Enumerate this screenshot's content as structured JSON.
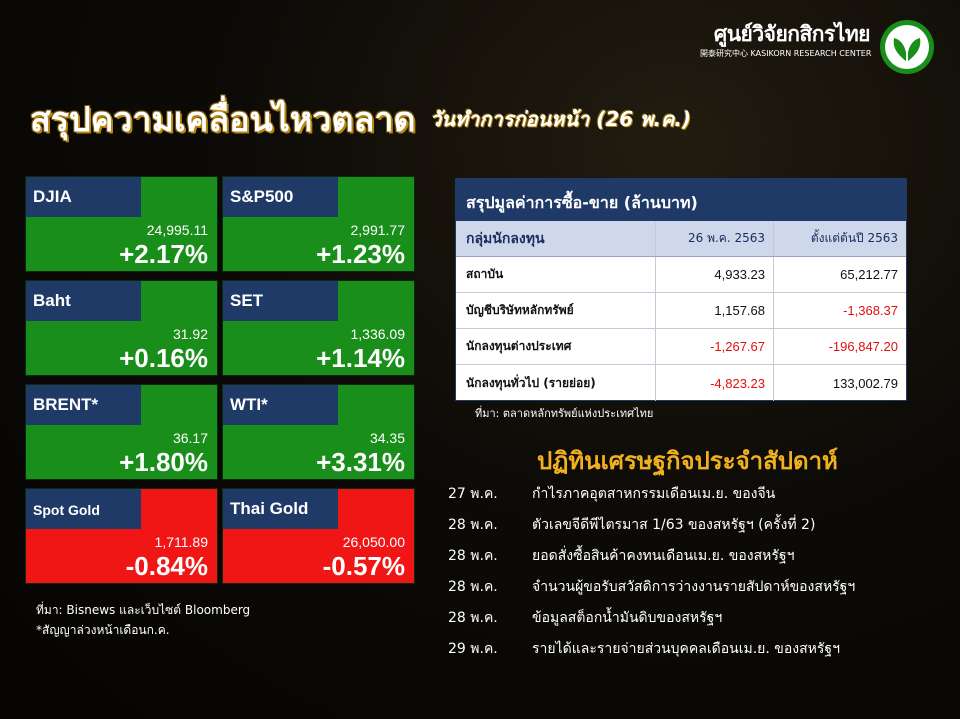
{
  "brand": {
    "name_th": "ศูนย์วิจัยกสิกรไทย",
    "name_en": "開泰研究中心 KASIKORN RESEARCH CENTER",
    "color_green": "#1a8e1a"
  },
  "header": {
    "title": "สรุปความเคลื่อนไหวตลาด",
    "subtitle": "วันทำการก่อนหน้า (26 พ.ค.)"
  },
  "markets": [
    {
      "name": "DJIA",
      "value": "24,995.11",
      "change": "+2.17%",
      "direction": "up"
    },
    {
      "name": "S&P500",
      "value": "2,991.77",
      "change": "+1.23%",
      "direction": "up"
    },
    {
      "name": "Baht",
      "value": "31.92",
      "change": "+0.16%",
      "direction": "up"
    },
    {
      "name": "SET",
      "value": "1,336.09",
      "change": "+1.14%",
      "direction": "up"
    },
    {
      "name": "BRENT*",
      "value": "36.17",
      "change": "+1.80%",
      "direction": "up"
    },
    {
      "name": "WTI*",
      "value": "34.35",
      "change": "+3.31%",
      "direction": "up"
    },
    {
      "name": "Spot Gold",
      "value": "1,711.89",
      "change": "-0.84%",
      "direction": "down"
    },
    {
      "name": "Thai Gold",
      "value": "26,050.00",
      "change": "-0.57%",
      "direction": "down"
    }
  ],
  "colors": {
    "up": "#1a8e1a",
    "down": "#f01616",
    "tag": "#203a68",
    "negative_text": "#e01010",
    "calendar_title": "#f0b020"
  },
  "notes_left": {
    "source": "ที่มา: Bisnews และเว็บไซต์ Bloomberg",
    "footnote": "*สัญญาล่วงหน้าเดือนก.ค."
  },
  "trading_table": {
    "title": "สรุปมูลค่าการซื้อ-ขาย (ล้านบาท)",
    "columns": [
      "กลุ่มนักลงทุน",
      "26 พ.ค. 2563",
      "ตั้งแต่ต้นปี 2563"
    ],
    "rows": [
      {
        "group": "สถาบัน",
        "day": "4,933.23",
        "ytd": "65,212.77",
        "day_neg": false,
        "ytd_neg": false
      },
      {
        "group": "บัญชีบริษัทหลักทรัพย์",
        "day": "1,157.68",
        "ytd": "-1,368.37",
        "day_neg": false,
        "ytd_neg": true
      },
      {
        "group": "นักลงทุนต่างประเทศ",
        "day": "-1,267.67",
        "ytd": "-196,847.20",
        "day_neg": true,
        "ytd_neg": true
      },
      {
        "group": "นักลงทุนทั่วไป (รายย่อย)",
        "day": "-4,823.23",
        "ytd": "133,002.79",
        "day_neg": true,
        "ytd_neg": false
      }
    ],
    "source": "ที่มา: ตลาดหลักทรัพย์แห่งประเทศไทย"
  },
  "calendar": {
    "title": "ปฏิทินเศรษฐกิจประจำสัปดาห์",
    "events": [
      {
        "date": "27 พ.ค.",
        "event": "กำไรภาคอุตสาหกรรมเดือนเม.ย. ของจีน"
      },
      {
        "date": "28 พ.ค.",
        "event": "ตัวเลขจีดีพีไตรมาส 1/63 ของสหรัฐฯ (ครั้งที่ 2)"
      },
      {
        "date": "28 พ.ค.",
        "event": "ยอดสั่งซื้อสินค้าคงทนเดือนเม.ย. ของสหรัฐฯ"
      },
      {
        "date": "28 พ.ค.",
        "event": "จำนวนผู้ขอรับสวัสดิการว่างงานรายสัปดาห์ของสหรัฐฯ"
      },
      {
        "date": "28 พ.ค.",
        "event": "ข้อมูลสต็อกน้ำมันดิบของสหรัฐฯ"
      },
      {
        "date": "29 พ.ค.",
        "event": "รายได้และรายจ่ายส่วนบุคคลเดือนเม.ย. ของสหรัฐฯ"
      }
    ]
  }
}
